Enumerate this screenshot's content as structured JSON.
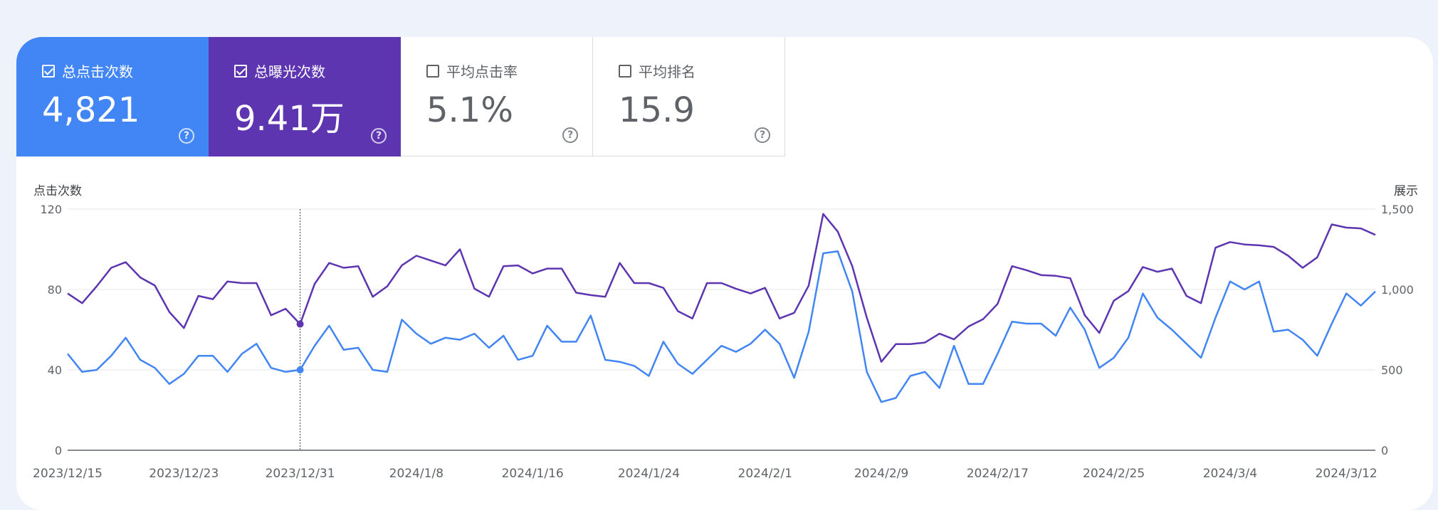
{
  "metrics": [
    {
      "label": "总点击次数",
      "value": "4,821",
      "checked": true
    },
    {
      "label": "总曝光次数",
      "value": "9.41万",
      "checked": true
    },
    {
      "label": "平均点击率",
      "value": "5.1%",
      "checked": false
    },
    {
      "label": "平均排名",
      "value": "15.9",
      "checked": false
    }
  ],
  "help_glyph": "?",
  "colors": {
    "clicks": "#4285f4",
    "impressions": "#5e35b1"
  },
  "chart_data": {
    "type": "line",
    "ylabel_left": "点击次数",
    "ylabel_right": "展示",
    "yticks_left": [
      "120",
      "80",
      "40",
      "0"
    ],
    "yticks_right": [
      "1,500",
      "1,000",
      "500",
      "0"
    ],
    "ylim_left": [
      0,
      120
    ],
    "ylim_right": [
      0,
      1500
    ],
    "x_start": "2023/12/15",
    "x_end": "2024/3/14",
    "x_tick_labels": [
      "2023/12/15",
      "2023/12/23",
      "2023/12/31",
      "2024/1/8",
      "2024/1/16",
      "2024/1/24",
      "2024/2/1",
      "2024/2/9",
      "2024/2/17",
      "2024/2/25",
      "2024/3/4",
      "2024/3/12"
    ],
    "highlighted_date": "2023/12/31",
    "grid": true,
    "series": [
      {
        "axis": "left",
        "values": [
          48,
          39,
          40,
          47,
          56,
          45,
          41,
          33,
          38,
          47,
          47,
          39,
          48,
          53,
          41,
          39,
          40,
          52,
          62,
          50,
          51,
          40,
          39,
          65,
          58,
          53,
          56,
          55,
          58,
          51,
          57,
          45,
          47,
          62,
          54,
          54,
          67,
          45,
          44,
          42,
          37,
          54,
          43,
          38,
          45,
          52,
          49,
          53,
          60,
          53,
          36,
          59,
          98,
          99,
          79,
          39,
          24,
          26,
          37,
          39,
          31,
          52,
          33,
          33,
          48,
          64,
          63,
          63,
          57,
          71,
          60,
          41,
          46,
          56,
          78,
          66,
          60,
          53,
          46,
          66,
          84,
          80,
          84,
          59,
          60,
          55,
          47,
          63,
          78,
          72,
          79
        ]
      },
      {
        "axis": "right",
        "values": [
          975,
          915,
          1020,
          1135,
          1170,
          1075,
          1025,
          860,
          760,
          960,
          940,
          1050,
          1040,
          1040,
          840,
          880,
          785,
          1035,
          1165,
          1135,
          1145,
          955,
          1020,
          1150,
          1210,
          1180,
          1150,
          1250,
          1005,
          955,
          1145,
          1150,
          1100,
          1130,
          1130,
          980,
          965,
          955,
          1165,
          1040,
          1040,
          1010,
          865,
          820,
          1040,
          1040,
          1005,
          975,
          1010,
          820,
          855,
          1025,
          1470,
          1360,
          1145,
          825,
          550,
          660,
          660,
          670,
          725,
          690,
          770,
          815,
          910,
          1145,
          1120,
          1090,
          1085,
          1070,
          840,
          730,
          930,
          990,
          1140,
          1110,
          1130,
          960,
          915,
          1260,
          1295,
          1280,
          1275,
          1265,
          1210,
          1135,
          1200,
          1405,
          1385,
          1380,
          1340
        ]
      }
    ]
  }
}
